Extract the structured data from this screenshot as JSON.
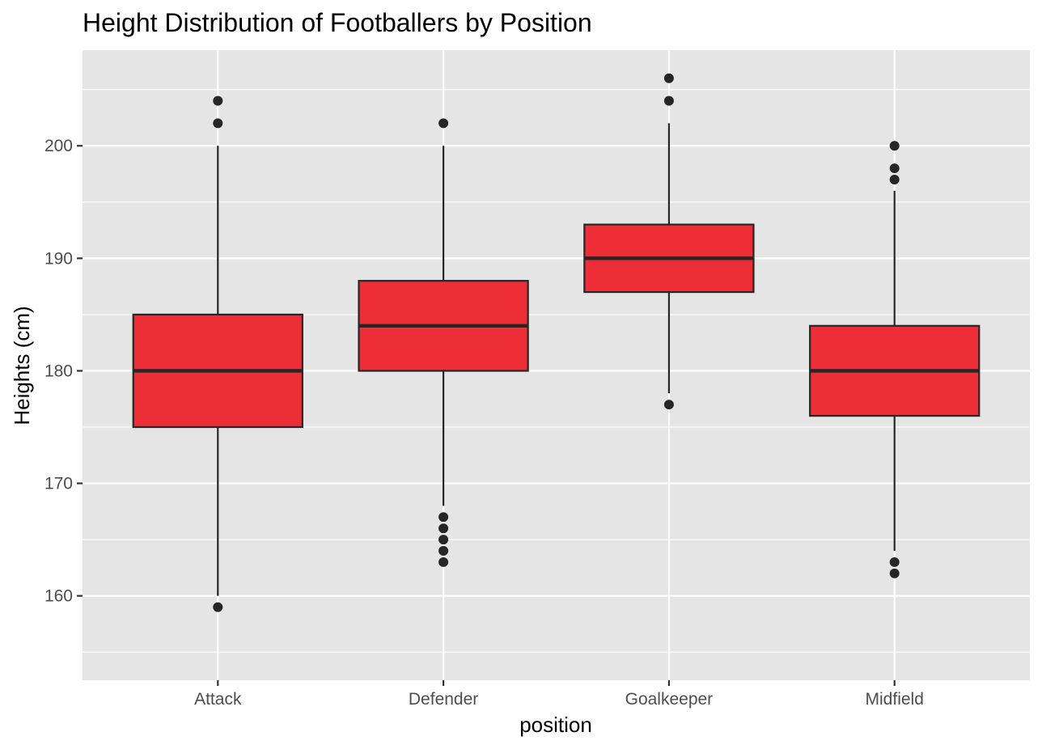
{
  "chart_data": {
    "type": "boxplot",
    "title": "Height Distribution of Footballers by Position",
    "xlabel": "position",
    "ylabel": "Heights (cm)",
    "categories": [
      "Attack",
      "Defender",
      "Goalkeeper",
      "Midfield"
    ],
    "ylim": [
      152.5,
      208.5
    ],
    "y_ticks": [
      160,
      170,
      180,
      190,
      200
    ],
    "y_tick_labels": [
      "160",
      "170",
      "180",
      "190",
      "200"
    ],
    "grid": true,
    "legend": "none",
    "colors": {
      "panel_background": "#e5e5e5",
      "grid": "#ffffff",
      "box_fill": "#ee2e37",
      "box_outline": "#262626",
      "outlier": "#262626"
    },
    "boxes": [
      {
        "category": "Attack",
        "whisker_low": 160,
        "q1": 175,
        "median": 180,
        "q3": 185,
        "whisker_high": 200,
        "outliers": [
          159,
          202,
          204
        ]
      },
      {
        "category": "Defender",
        "whisker_low": 168,
        "q1": 180,
        "median": 184,
        "q3": 188,
        "whisker_high": 200,
        "outliers": [
          163,
          164,
          165,
          166,
          167,
          202
        ]
      },
      {
        "category": "Goalkeeper",
        "whisker_low": 178,
        "q1": 187,
        "median": 190,
        "q3": 193,
        "whisker_high": 202,
        "outliers": [
          177,
          204,
          206
        ]
      },
      {
        "category": "Midfield",
        "whisker_low": 164,
        "q1": 176,
        "median": 180,
        "q3": 184,
        "whisker_high": 196,
        "outliers": [
          162,
          163,
          197,
          198,
          200
        ]
      }
    ]
  }
}
